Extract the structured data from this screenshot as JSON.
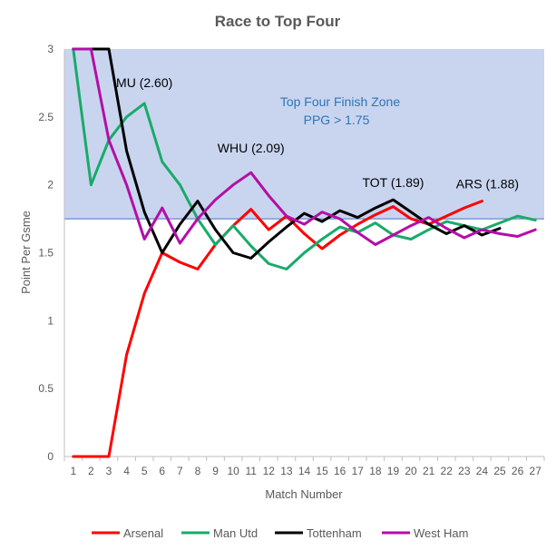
{
  "chart_data": {
    "type": "line",
    "title": "Race to Top Four",
    "xlabel": "Match Number",
    "ylabel": "Point Per Gsme",
    "xlim": [
      1,
      27
    ],
    "ylim": [
      0,
      3
    ],
    "x_ticks": [
      "1",
      "2",
      "3",
      "4",
      "5",
      "6",
      "7",
      "8",
      "9",
      "10",
      "11",
      "12",
      "13",
      "14",
      "15",
      "16",
      "17",
      "18",
      "19",
      "20",
      "21",
      "22",
      "23",
      "24",
      "25",
      "26",
      "27"
    ],
    "y_ticks": [
      "0",
      "0.5",
      "1",
      "1.5",
      "2",
      "2.5",
      "3"
    ],
    "grid": false,
    "legend_position": "bottom",
    "zone": {
      "threshold": 1.75,
      "color": "#c9d5ef",
      "line_color": "#4472c4",
      "label_line1": "Top Four Finish Zone",
      "label_line2": "PPG > 1.75",
      "label_color": "#2e75b6"
    },
    "series": [
      {
        "name": "Arsenal",
        "color": "#ff0000",
        "x": [
          1,
          2,
          3,
          4,
          5,
          6,
          7,
          8,
          9,
          10,
          11,
          12,
          13,
          14,
          15,
          16,
          17,
          18,
          19,
          20,
          21,
          22,
          23,
          24
        ],
        "values": [
          0,
          0,
          0,
          0.75,
          1.2,
          1.5,
          1.43,
          1.38,
          1.56,
          1.7,
          1.82,
          1.67,
          1.77,
          1.64,
          1.53,
          1.63,
          1.71,
          1.78,
          1.84,
          1.75,
          1.71,
          1.77,
          1.83,
          1.88
        ]
      },
      {
        "name": "Man Utd",
        "color": "#1aaa6a",
        "x": [
          1,
          2,
          3,
          4,
          5,
          6,
          7,
          8,
          9,
          10,
          11,
          12,
          13,
          14,
          15,
          16,
          17,
          18,
          19,
          20,
          21,
          22,
          23,
          24,
          25,
          26,
          27
        ],
        "values": [
          3,
          2,
          2.33,
          2.5,
          2.6,
          2.17,
          2.0,
          1.75,
          1.56,
          1.7,
          1.55,
          1.42,
          1.38,
          1.5,
          1.6,
          1.69,
          1.65,
          1.72,
          1.63,
          1.6,
          1.67,
          1.73,
          1.7,
          1.67,
          1.72,
          1.77,
          1.74
        ]
      },
      {
        "name": "Tottenham",
        "color": "#000000",
        "x": [
          1,
          2,
          3,
          4,
          5,
          6,
          7,
          8,
          9,
          10,
          11,
          12,
          13,
          14,
          15,
          16,
          17,
          18,
          19,
          20,
          21,
          22,
          23,
          24,
          25
        ],
        "values": [
          3,
          3,
          3,
          2.25,
          1.8,
          1.5,
          1.71,
          1.88,
          1.67,
          1.5,
          1.46,
          1.58,
          1.69,
          1.79,
          1.73,
          1.81,
          1.76,
          1.83,
          1.89,
          1.8,
          1.71,
          1.64,
          1.7,
          1.63,
          1.68
        ]
      },
      {
        "name": "West Ham",
        "color": "#b40ea8",
        "x": [
          1,
          2,
          3,
          4,
          5,
          6,
          7,
          8,
          9,
          10,
          11,
          12,
          13,
          14,
          15,
          16,
          17,
          18,
          19,
          20,
          21,
          22,
          23,
          24,
          25,
          26,
          27
        ],
        "values": [
          3,
          3,
          2.33,
          2.0,
          1.6,
          1.83,
          1.57,
          1.75,
          1.89,
          2.0,
          2.09,
          1.92,
          1.77,
          1.71,
          1.8,
          1.75,
          1.65,
          1.56,
          1.63,
          1.7,
          1.76,
          1.68,
          1.61,
          1.67,
          1.64,
          1.62,
          1.67
        ]
      }
    ],
    "annotations": [
      {
        "text": "MU (2.60)",
        "x": 5,
        "y": 2.6
      },
      {
        "text": "WHU (2.09)",
        "x": 11,
        "y": 2.09
      },
      {
        "text": "TOT (1.89)",
        "x": 19,
        "y": 1.89
      },
      {
        "text": "ARS (1.88)",
        "x": 24,
        "y": 1.88
      }
    ]
  }
}
